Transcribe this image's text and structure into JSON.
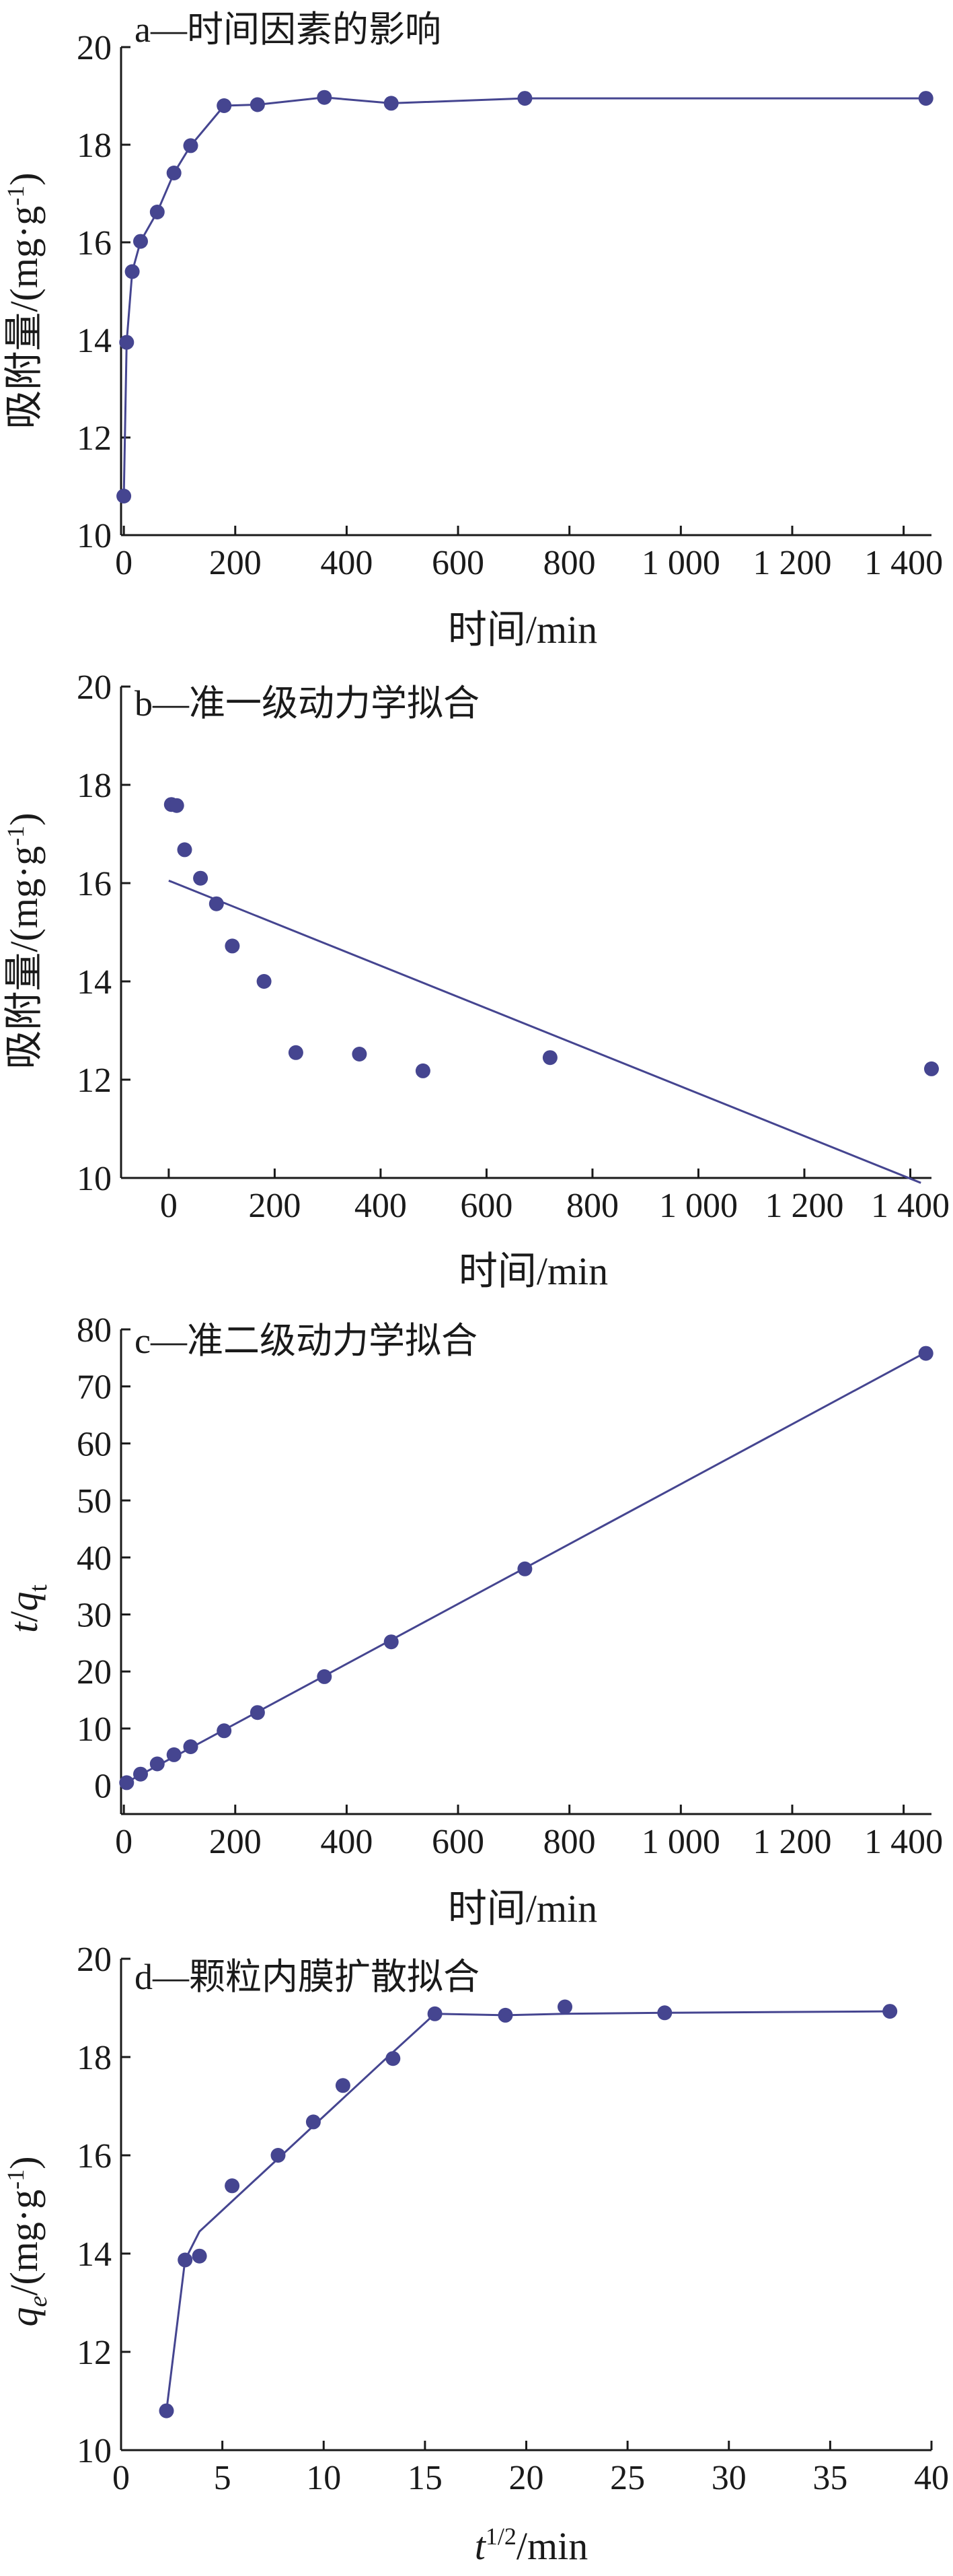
{
  "figure": {
    "accent_color": "#454590",
    "axis_color": "#1a1a1a"
  },
  "chart_data": [
    {
      "id": "a",
      "type": "line",
      "title": "a—时间因素的影响",
      "xlabel": "时间/min",
      "ylabel": "吸附量/(mg·g⁻¹)",
      "xlim": [
        -5,
        1450
      ],
      "ylim": [
        10,
        20
      ],
      "xticks": [
        0,
        200,
        400,
        600,
        800,
        1000,
        1200,
        1400
      ],
      "xtick_labels": [
        "0",
        "200",
        "400",
        "600",
        "800",
        "1 000",
        "1 200",
        "1 400"
      ],
      "yticks": [
        10,
        12,
        14,
        16,
        18,
        20
      ],
      "grid": false,
      "series": [
        {
          "x": [
            0,
            5,
            15,
            30,
            60,
            90,
            120,
            180,
            240,
            360,
            480,
            720,
            1440
          ],
          "y": [
            10.8,
            13.95,
            15.4,
            16.02,
            16.62,
            17.42,
            17.98,
            18.8,
            18.82,
            18.97,
            18.85,
            18.95,
            18.95
          ],
          "marker": "circle",
          "line": "connect"
        }
      ]
    },
    {
      "id": "b",
      "type": "scatter",
      "title": "b—准一级动力学拟合",
      "xlabel": "时间/min",
      "ylabel": "吸附量/(mg·g⁻¹)",
      "xlim": [
        -90,
        1440
      ],
      "ylim": [
        10,
        20
      ],
      "xticks": [
        0,
        200,
        400,
        600,
        800,
        1000,
        1200,
        1400
      ],
      "xtick_labels": [
        "0",
        "200",
        "400",
        "600",
        "800",
        "1 000",
        "1 200",
        "1 400"
      ],
      "yticks": [
        10,
        12,
        14,
        16,
        18,
        20
      ],
      "grid": false,
      "series": [
        {
          "x": [
            5,
            15,
            30,
            60,
            90,
            120,
            180,
            240,
            360,
            480,
            720,
            1440
          ],
          "y": [
            17.6,
            17.58,
            16.68,
            16.1,
            15.58,
            14.72,
            14.0,
            12.55,
            12.52,
            12.18,
            12.45,
            12.22
          ],
          "marker": "circle",
          "line": "none"
        }
      ],
      "fit_line": {
        "x": [
          0,
          1420
        ],
        "y": [
          16.05,
          9.9
        ]
      }
    },
    {
      "id": "c",
      "type": "scatter",
      "title": "c—准二级动力学拟合",
      "xlabel": "时间/min",
      "ylabel": "t/qt",
      "xlim": [
        -5,
        1450
      ],
      "ylim": [
        -5,
        80
      ],
      "xticks": [
        0,
        200,
        400,
        600,
        800,
        1000,
        1200,
        1400
      ],
      "xtick_labels": [
        "0",
        "200",
        "400",
        "600",
        "800",
        "1 000",
        "1 200",
        "1 400"
      ],
      "yticks": [
        0,
        10,
        20,
        30,
        40,
        50,
        60,
        70,
        80
      ],
      "grid": false,
      "series": [
        {
          "x": [
            5,
            30,
            60,
            90,
            120,
            180,
            240,
            360,
            480,
            720,
            1440
          ],
          "y": [
            0.5,
            2.0,
            3.8,
            5.4,
            6.8,
            9.6,
            12.8,
            19.1,
            25.2,
            38.0,
            75.8
          ],
          "marker": "circle",
          "line": "none"
        }
      ],
      "fit_line": {
        "x": [
          0,
          1440
        ],
        "y": [
          0.3,
          76.0
        ]
      }
    },
    {
      "id": "d",
      "type": "scatter",
      "title": "d—颗粒内膜扩散拟合",
      "xlabel": "t1/2/min",
      "ylabel": "qe/(mg·g⁻¹)",
      "xlim": [
        0,
        40
      ],
      "ylim": [
        10,
        20
      ],
      "xticks": [
        0,
        5,
        10,
        15,
        20,
        25,
        30,
        35,
        40
      ],
      "xtick_labels": [
        "0",
        "5",
        "10",
        "15",
        "20",
        "25",
        "30",
        "35",
        "40"
      ],
      "yticks": [
        10,
        12,
        14,
        16,
        18,
        20
      ],
      "grid": false,
      "series": [
        {
          "x": [
            2.24,
            3.16,
            3.87,
            5.48,
            7.75,
            9.49,
            10.95,
            13.42,
            15.49,
            18.97,
            21.91,
            26.83,
            37.95
          ],
          "y": [
            10.8,
            13.87,
            13.95,
            15.38,
            16.0,
            16.68,
            17.42,
            17.97,
            18.88,
            18.85,
            19.02,
            18.9,
            18.93
          ],
          "marker": "circle",
          "line": "none"
        }
      ],
      "fit_line": {
        "x": [
          2.24,
          3.16,
          3.87,
          13.42,
          15.49,
          18.97,
          21.91,
          26.83,
          37.95
        ],
        "y": [
          10.8,
          13.87,
          14.45,
          18.1,
          18.88,
          18.85,
          18.88,
          18.9,
          18.93
        ]
      }
    }
  ]
}
